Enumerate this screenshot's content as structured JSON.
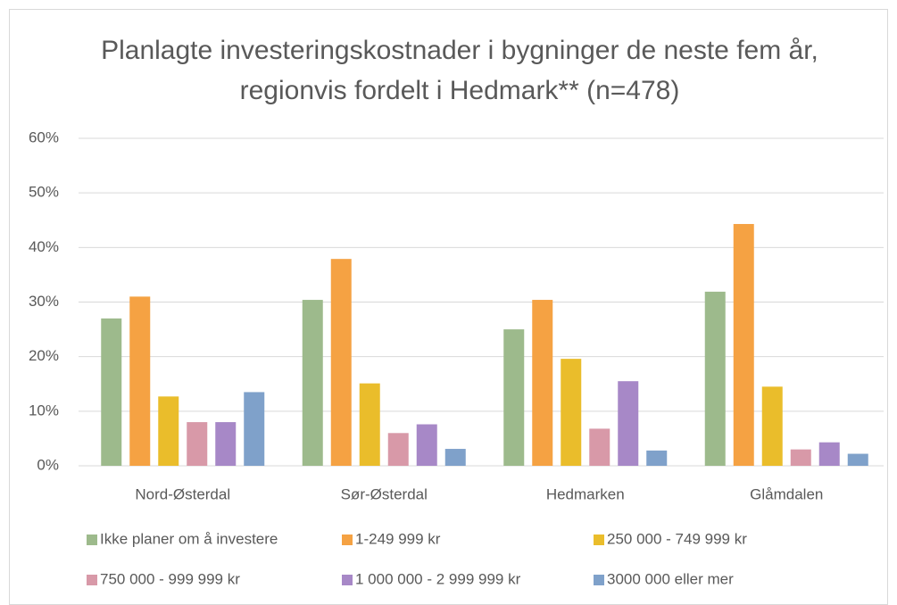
{
  "chart_data": {
    "type": "bar",
    "title": "Planlagte investeringskostnader i bygninger de neste fem år, regionvis fordelt i Hedmark** (n=478)",
    "categories": [
      "Nord-Østerdal",
      "Sør-Østerdal",
      "Hedmarken",
      "Glåmdalen"
    ],
    "series": [
      {
        "name": "Ikke planer om å investere",
        "color": "#9dba8c",
        "values": [
          27,
          30.4,
          25,
          31.9
        ]
      },
      {
        "name": "1-249 999 kr",
        "color": "#f5a243",
        "values": [
          31,
          37.9,
          30.4,
          44.3
        ]
      },
      {
        "name": "250 000 - 749 999 kr",
        "color": "#eabd2b",
        "values": [
          12.7,
          15.1,
          19.6,
          14.5
        ]
      },
      {
        "name": "750 000 - 999 999 kr",
        "color": "#d899a8",
        "values": [
          8,
          6,
          6.8,
          3
        ]
      },
      {
        "name": "1 000 000 - 2 999 999 kr",
        "color": "#a788c7",
        "values": [
          8,
          7.6,
          15.5,
          4.3
        ]
      },
      {
        "name": "3000 000 eller mer",
        "color": "#7fa1ca",
        "values": [
          13.5,
          3.1,
          2.8,
          2.2
        ]
      }
    ],
    "ylim": [
      0,
      60
    ],
    "yticks": [
      {
        "value": 0,
        "label": "0%"
      },
      {
        "value": 10,
        "label": "10%"
      },
      {
        "value": 20,
        "label": "20%"
      },
      {
        "value": 30,
        "label": "30%"
      },
      {
        "value": 40,
        "label": "40%"
      },
      {
        "value": 50,
        "label": "50%"
      },
      {
        "value": 60,
        "label": "60%"
      }
    ],
    "grid": true,
    "legend": "bottom"
  }
}
